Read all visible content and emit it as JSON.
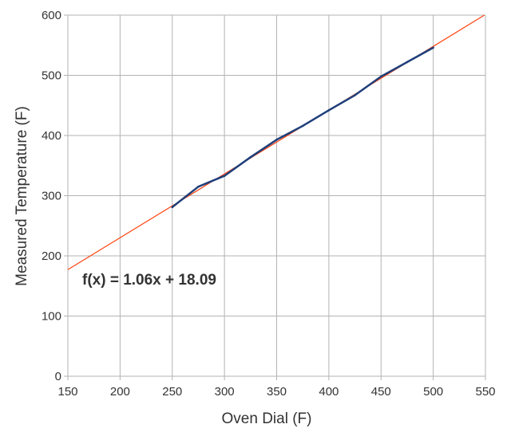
{
  "chart_data": {
    "type": "scatter",
    "title": "",
    "xlabel": "Oven Dial (F)",
    "ylabel": "Measured Temperature (F)",
    "xlim": [
      150,
      550
    ],
    "ylim": [
      0,
      600
    ],
    "xticks": [
      150,
      200,
      250,
      300,
      350,
      400,
      450,
      500,
      550
    ],
    "yticks": [
      0,
      100,
      200,
      300,
      400,
      500,
      600
    ],
    "grid": true,
    "series": [
      {
        "color": "#1f3f7a",
        "x": [
          250,
          275,
          300,
          325,
          350,
          375,
          400,
          425,
          450,
          475,
          500
        ],
        "y": [
          281,
          315,
          333,
          364,
          393,
          416,
          442,
          467,
          498,
          522,
          546
        ]
      }
    ],
    "trendline": {
      "slope": 1.06,
      "intercept": 18.09,
      "color": "#ff420e",
      "equation": "f(x) = 1.06x + 18.09"
    }
  }
}
